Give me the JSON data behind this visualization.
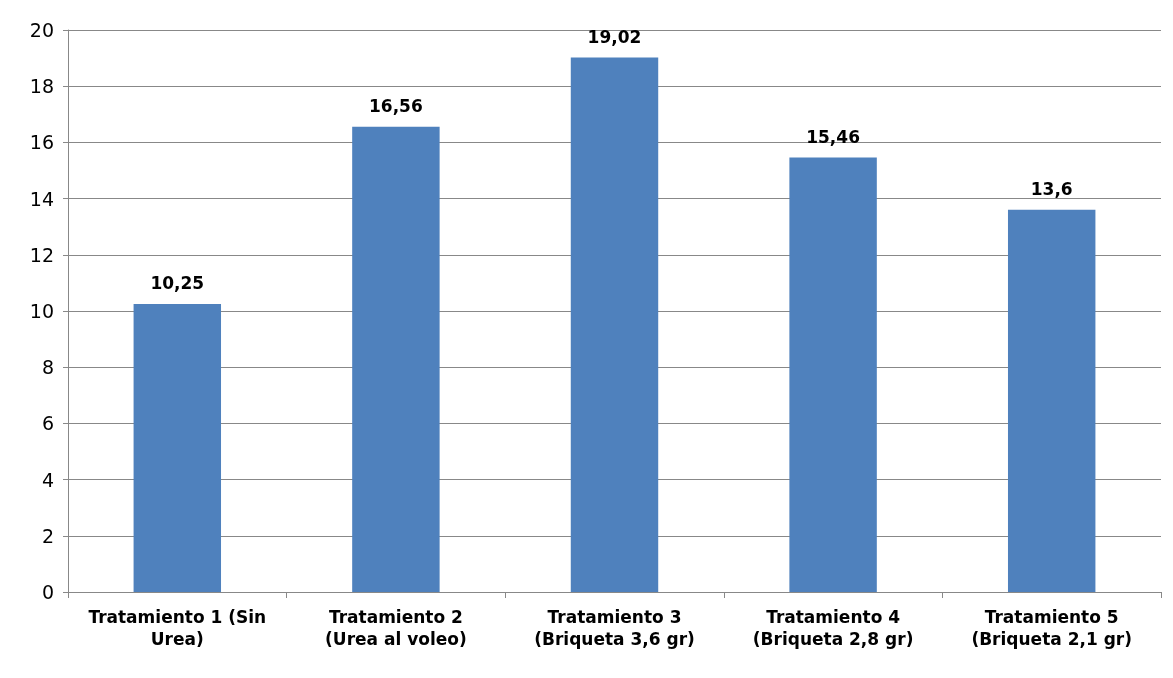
{
  "chart_data": {
    "type": "bar",
    "categories": [
      "Tratamiento 1 (Sin\nUrea)",
      "Tratamiento 2\n(Urea al voleo)",
      "Tratamiento 3\n(Briqueta 3,6 gr)",
      "Tratamiento 4\n(Briqueta 2,8 gr)",
      "Tratamiento 5\n(Briqueta 2,1 gr)"
    ],
    "values": [
      10.25,
      16.56,
      19.02,
      15.46,
      13.6
    ],
    "value_labels": [
      "10,25",
      "16,56",
      "19,02",
      "15,46",
      "13,6"
    ],
    "color": "#4f81bd",
    "ylim": [
      0,
      20
    ],
    "yticks": [
      0,
      2,
      4,
      6,
      8,
      10,
      12,
      14,
      16,
      18,
      20
    ],
    "grid": "y"
  }
}
